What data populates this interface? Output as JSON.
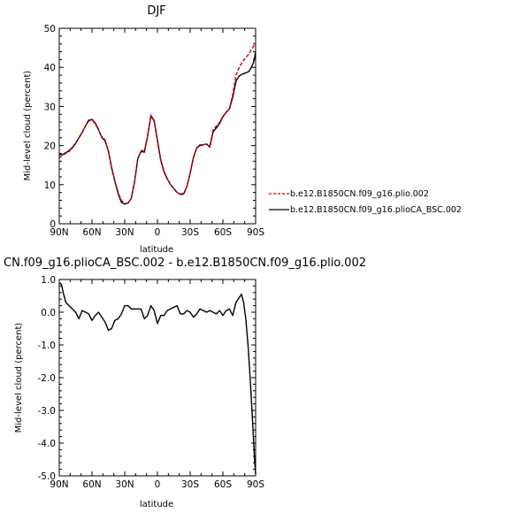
{
  "chart_data": [
    {
      "type": "line",
      "title": "DJF",
      "xlabel": "latitude",
      "ylabel": "Mid-level cloud (percent)",
      "xlim": [
        90,
        -90
      ],
      "ylim": [
        0,
        50
      ],
      "xticks": [
        90,
        60,
        30,
        0,
        -30,
        -60,
        -90
      ],
      "xtick_labels": [
        "90N",
        "60N",
        "30N",
        "0",
        "30S",
        "60S",
        "90S"
      ],
      "yticks": [
        0,
        10,
        20,
        30,
        40,
        50
      ],
      "ytick_labels": [
        "0",
        "10",
        "20",
        "30",
        "40",
        "50"
      ],
      "legend_position": "right-bottom outside",
      "series": [
        {
          "name": "b.e12.B1850CN.f09_g16.plio.002",
          "color": "#cc0000",
          "dash": "dashed",
          "x": [
            90,
            87,
            84,
            81,
            78,
            75,
            72,
            69,
            66,
            63,
            60,
            57,
            54,
            51,
            48,
            45,
            42,
            39,
            36,
            33,
            30,
            27,
            24,
            21,
            18,
            15,
            12,
            9,
            6,
            3,
            0,
            -3,
            -6,
            -9,
            -12,
            -15,
            -18,
            -21,
            -24,
            -27,
            -30,
            -33,
            -36,
            -39,
            -42,
            -45,
            -48,
            -51,
            -54,
            -57,
            -60,
            -63,
            -66,
            -69,
            -72,
            -75,
            -78,
            -81,
            -84,
            -86,
            -88,
            -89,
            -90
          ],
          "y": [
            16.8,
            17.5,
            18,
            18.5,
            19.3,
            20.5,
            22,
            23.5,
            25,
            26.2,
            26.7,
            25.5,
            24,
            22.3,
            21.5,
            18.5,
            14.5,
            11,
            8,
            6,
            5.2,
            5.3,
            6.5,
            10.5,
            16.5,
            18.8,
            18.6,
            22.5,
            27.8,
            26.5,
            21.5,
            16.5,
            13.5,
            11.5,
            10,
            9,
            8,
            7.6,
            7.8,
            9.5,
            13,
            17,
            19.5,
            20.2,
            20.2,
            20.4,
            19.8,
            24,
            25,
            26,
            27.5,
            28.5,
            29.5,
            33,
            38,
            40,
            41.5,
            42.5,
            43.5,
            44.5,
            45.3,
            45.8,
            46.2
          ]
        },
        {
          "name": "b.e12.B1850CN.f09_g16.plioCA_BSC.002",
          "color": "#000000",
          "dash": "solid",
          "x": [
            90,
            87,
            84,
            81,
            78,
            75,
            72,
            69,
            66,
            63,
            60,
            57,
            54,
            51,
            48,
            45,
            42,
            39,
            36,
            33,
            30,
            27,
            24,
            21,
            18,
            15,
            12,
            9,
            6,
            3,
            0,
            -3,
            -6,
            -9,
            -12,
            -15,
            -18,
            -21,
            -24,
            -27,
            -30,
            -33,
            -36,
            -39,
            -42,
            -45,
            -48,
            -51,
            -54,
            -57,
            -60,
            -63,
            -66,
            -69,
            -72,
            -75,
            -78,
            -81,
            -84,
            -86,
            -88,
            -89,
            -90
          ],
          "y": [
            17.7,
            17.7,
            18.2,
            18.7,
            19.5,
            20.6,
            22,
            23.3,
            25,
            26.5,
            26.7,
            25.8,
            24.1,
            22.1,
            21.2,
            18.7,
            14.3,
            10.8,
            7.7,
            5.5,
            5.0,
            5.3,
            6.5,
            10.7,
            16.7,
            18.5,
            18.3,
            22.5,
            27.6,
            26.3,
            21.3,
            16.3,
            13.3,
            11.5,
            10.0,
            9.0,
            8.0,
            7.5,
            7.6,
            9.5,
            12.9,
            16.9,
            19.4,
            20.0,
            20.2,
            20.4,
            19.6,
            23.5,
            24.5,
            25.7,
            27.4,
            28.5,
            29.4,
            32.3,
            36.5,
            37.8,
            38.3,
            38.6,
            39.0,
            40.0,
            41.2,
            42.5,
            44.0
          ]
        }
      ]
    },
    {
      "type": "line",
      "title": "CN.f09_g16.plioCA_BSC.002 - b.e12.B1850CN.f09_g16.plio.002",
      "xlabel": "latitude",
      "ylabel": "Mid-level cloud (percent)",
      "xlim": [
        90,
        -90
      ],
      "ylim": [
        -5,
        1
      ],
      "xticks": [
        90,
        60,
        30,
        0,
        -30,
        -60,
        -90
      ],
      "xtick_labels": [
        "90N",
        "60N",
        "30N",
        "0",
        "30S",
        "60S",
        "90S"
      ],
      "yticks": [
        1,
        0,
        -1,
        -2,
        -3,
        -4,
        -5
      ],
      "ytick_labels": [
        "1.0",
        "0.0",
        "-1.0",
        "-2.0",
        "-3.0",
        "-4.0",
        "-5.0"
      ],
      "series": [
        {
          "color": "#000000",
          "dash": "solid",
          "x": [
            90,
            88,
            86,
            84,
            81,
            78,
            75,
            72,
            69,
            66,
            63,
            60,
            57,
            54,
            51,
            48,
            45,
            42,
            39,
            36,
            33,
            30,
            27,
            24,
            21,
            18,
            15,
            12,
            9,
            6,
            3,
            0,
            -3,
            -6,
            -9,
            -12,
            -15,
            -18,
            -21,
            -24,
            -27,
            -30,
            -33,
            -36,
            -39,
            -42,
            -45,
            -48,
            -51,
            -54,
            -57,
            -60,
            -63,
            -66,
            -69,
            -72,
            -75,
            -77,
            -79,
            -81,
            -83,
            -85,
            -87,
            -89,
            -90
          ],
          "y": [
            0.9,
            0.85,
            0.55,
            0.3,
            0.2,
            0.1,
            0.0,
            -0.2,
            0.05,
            0.0,
            -0.05,
            -0.25,
            -0.1,
            0.0,
            -0.15,
            -0.3,
            -0.55,
            -0.5,
            -0.25,
            -0.2,
            -0.05,
            0.2,
            0.2,
            0.1,
            0.1,
            0.1,
            0.1,
            -0.2,
            -0.1,
            0.2,
            0.05,
            -0.35,
            -0.1,
            -0.1,
            0.05,
            0.1,
            0.15,
            0.2,
            -0.05,
            -0.05,
            0.05,
            0.0,
            -0.15,
            -0.05,
            0.1,
            0.05,
            0.0,
            0.05,
            0.0,
            -0.05,
            0.05,
            -0.1,
            0.05,
            0.1,
            -0.1,
            0.3,
            0.45,
            0.55,
            0.3,
            -0.2,
            -1.0,
            -2.0,
            -3.2,
            -4.5,
            -4.95
          ]
        }
      ]
    }
  ]
}
